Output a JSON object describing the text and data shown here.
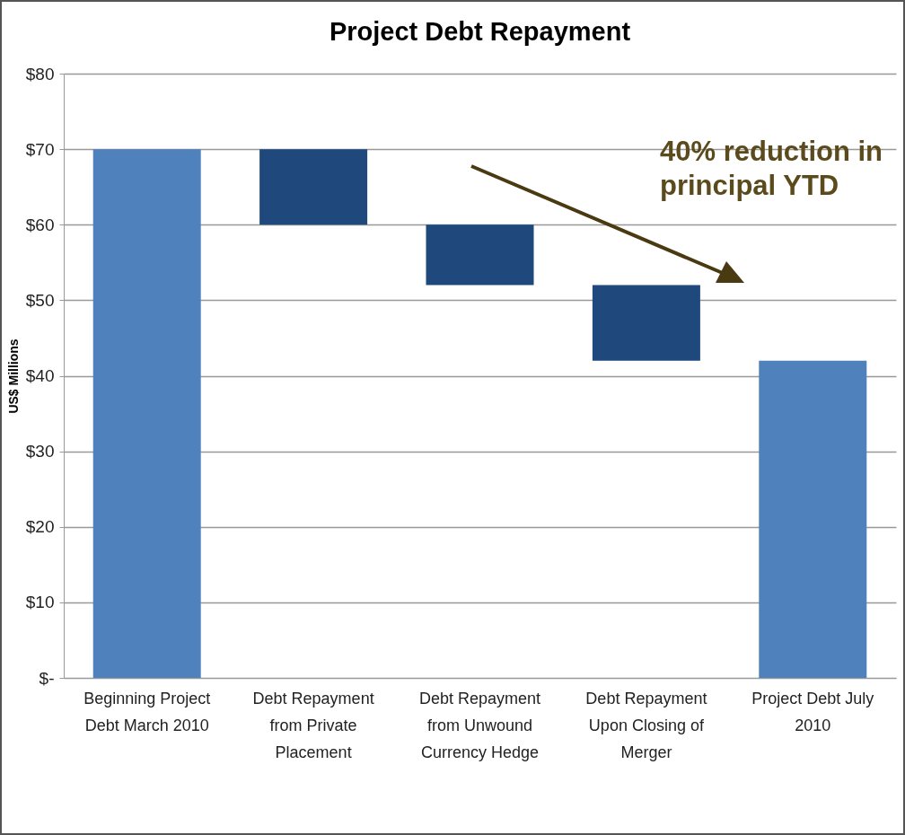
{
  "chart_data": {
    "type": "bar",
    "title": "Project Debt Repayment",
    "ylabel": "US$ Millions",
    "categories": [
      "Beginning Project Debt March 2010",
      "Debt Repayment from Private Placement",
      "Debt Repayment from Unwound Currency Hedge",
      "Debt Repayment Upon Closing of Merger",
      "Project Debt July 2010"
    ],
    "values": [
      70,
      10,
      8,
      10,
      42
    ],
    "base": [
      0,
      60,
      52,
      42,
      0
    ],
    "colors": [
      "#4f81bd",
      "#1f497d",
      "#1f497d",
      "#1f497d",
      "#4f81bd"
    ],
    "ylim": [
      0,
      80
    ],
    "yticks": [
      {
        "value": 0,
        "label": "$-"
      },
      {
        "value": 10,
        "label": "$10"
      },
      {
        "value": 20,
        "label": "$20"
      },
      {
        "value": 30,
        "label": "$30"
      },
      {
        "value": 40,
        "label": "$40"
      },
      {
        "value": 50,
        "label": "$50"
      },
      {
        "value": 60,
        "label": "$60"
      },
      {
        "value": 70,
        "label": "$70"
      },
      {
        "value": 80,
        "label": "$80"
      }
    ],
    "grid": "y",
    "annotations": [
      "40% reduction in principal YTD"
    ]
  }
}
